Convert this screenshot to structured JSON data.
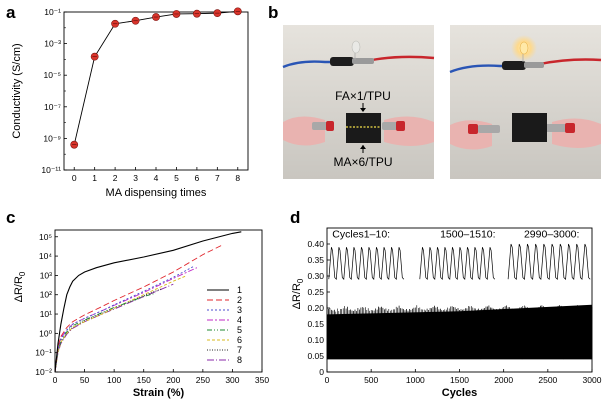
{
  "panels": {
    "a": "a",
    "b": "b",
    "c": "c",
    "d": "d"
  },
  "photo": {
    "label_top": "FA×1/TPU",
    "label_bottom": "MA×6/TPU",
    "colors": {
      "wire_blue": "#2a55b5",
      "wire_red": "#c8262c",
      "tpu": "#1a1a1a",
      "glove": "#e9b3b0",
      "led_on": "#ffe9a8"
    }
  },
  "chart_data": [
    {
      "id": "a",
      "type": "scatter",
      "xlabel": "MA dispensing times",
      "ylabel": "Conductivity (S/cm)",
      "xlim": [
        -0.5,
        8.5
      ],
      "xticks": [
        0,
        1,
        2,
        3,
        4,
        5,
        6,
        7,
        8
      ],
      "ylog": true,
      "ylim_exp": [
        -11,
        -1
      ],
      "yticks": [
        {
          "exp": -11,
          "label": "10⁻¹¹"
        },
        {
          "exp": -9,
          "label": "10⁻⁹"
        },
        {
          "exp": -7,
          "label": "10⁻⁷"
        },
        {
          "exp": -5,
          "label": "10⁻⁵"
        },
        {
          "exp": -3,
          "label": "10⁻³"
        },
        {
          "exp": -1,
          "label": "10⁻¹"
        }
      ],
      "x": [
        0,
        1,
        2,
        3,
        4,
        5,
        6,
        7,
        8
      ],
      "y": [
        4e-10,
        0.00015,
        0.018,
        0.028,
        0.048,
        0.075,
        0.078,
        0.085,
        0.11
      ],
      "marker_color": "#d9342b",
      "line_color": "#000000"
    },
    {
      "id": "c",
      "type": "line",
      "xlabel": "Strain (%)",
      "ylabel_main": "ΔR/R",
      "ylabel_sub": "0",
      "xlim": [
        0,
        350
      ],
      "xticks": [
        0,
        50,
        100,
        150,
        200,
        250,
        300,
        350
      ],
      "ylog": true,
      "ylim_exp": [
        -2,
        5.35
      ],
      "yticks": [
        {
          "exp": -2,
          "label": "10⁻²"
        },
        {
          "exp": -1,
          "label": "10⁻¹"
        },
        {
          "exp": 0,
          "label": "10⁰"
        },
        {
          "exp": 1,
          "label": "10¹"
        },
        {
          "exp": 2,
          "label": "10²"
        },
        {
          "exp": 3,
          "label": "10³"
        },
        {
          "exp": 4,
          "label": "10⁴"
        },
        {
          "exp": 5,
          "label": "10⁵"
        }
      ],
      "legend_position": "right",
      "series": [
        {
          "name": "1",
          "color": "#000000",
          "dash": "",
          "x": [
            0,
            5,
            10,
            15,
            20,
            25,
            30,
            40,
            50,
            70,
            100,
            150,
            200,
            250,
            300,
            315
          ],
          "y": [
            0.01,
            0.3,
            3,
            20,
            100,
            250,
            500,
            1000,
            1500,
            2500,
            4500,
            9000,
            20000,
            60000,
            150000,
            180000
          ]
        },
        {
          "name": "2",
          "color": "#e0242b",
          "dash": "6,3",
          "x": [
            0,
            5,
            10,
            20,
            30,
            50,
            80,
            100,
            150,
            200,
            250,
            285
          ],
          "y": [
            0.01,
            0.2,
            0.7,
            2,
            4,
            9,
            25,
            50,
            250,
            1500,
            12000,
            40000
          ]
        },
        {
          "name": "3",
          "color": "#4c4ccf",
          "dash": "2,2",
          "x": [
            0,
            5,
            10,
            20,
            30,
            50,
            80,
            100,
            150,
            200,
            235
          ],
          "y": [
            0.01,
            0.15,
            0.5,
            1.5,
            3,
            6,
            15,
            30,
            150,
            800,
            3000
          ]
        },
        {
          "name": "4",
          "color": "#c02ac6",
          "dash": "6,2,2,2",
          "x": [
            0,
            5,
            10,
            20,
            30,
            50,
            80,
            100,
            150,
            200,
            240
          ],
          "y": [
            0.01,
            0.2,
            0.6,
            1.5,
            3,
            6,
            15,
            28,
            130,
            700,
            2500
          ]
        },
        {
          "name": "5",
          "color": "#1f8a30",
          "dash": "5,2,1,2,1,2",
          "x": [
            0,
            5,
            10,
            20,
            30,
            50,
            80,
            100,
            150,
            170
          ],
          "y": [
            0.01,
            0.12,
            0.4,
            1.2,
            2.5,
            5,
            12,
            22,
            80,
            120
          ]
        },
        {
          "name": "6",
          "color": "#d9b91c",
          "dash": "3,2",
          "x": [
            0,
            5,
            10,
            20,
            30,
            50,
            80,
            100,
            150,
            200,
            220
          ],
          "y": [
            0.01,
            0.1,
            0.35,
            1,
            2,
            4,
            10,
            20,
            100,
            500,
            900
          ]
        },
        {
          "name": "7",
          "color": "#222222",
          "dash": "1,1.5",
          "x": [
            0,
            5,
            10,
            20,
            30,
            50,
            80,
            100,
            150,
            180
          ],
          "y": [
            0.01,
            0.12,
            0.35,
            1,
            2,
            4.5,
            11,
            20,
            90,
            200
          ]
        },
        {
          "name": "8",
          "color": "#8a2aa8",
          "dash": "7,2,1,2",
          "x": [
            0,
            5,
            10,
            20,
            30,
            50,
            80,
            100,
            150,
            200
          ],
          "y": [
            0.01,
            0.1,
            0.3,
            0.9,
            1.8,
            4,
            10,
            18,
            80,
            350
          ]
        }
      ]
    },
    {
      "id": "d",
      "type": "line",
      "xlabel": "Cycles",
      "ylabel_main": "ΔR/R",
      "ylabel_sub": "0",
      "xlim": [
        0,
        3000
      ],
      "xticks": [
        0,
        500,
        1000,
        1500,
        2000,
        2500,
        3000
      ],
      "ylim": [
        0,
        0.45
      ],
      "yticks": [
        0,
        0.05,
        0.1,
        0.15,
        0.2,
        0.25,
        0.3,
        0.35,
        0.4
      ],
      "ytick_labels": [
        "0",
        "0.05",
        "0.10",
        "0.15",
        "0.20",
        "0.25",
        "0.30",
        "0.35",
        "0.40"
      ],
      "band": {
        "low": 0.04,
        "high": 0.21,
        "color": "#000000"
      },
      "annotations": [
        {
          "text": "Cycles1–10:",
          "cycles": 10,
          "start": 20,
          "end": 870,
          "base": 0.29,
          "peak": 0.39
        },
        {
          "text": "1500–1510:",
          "cycles": 10,
          "start": 1050,
          "end": 1900,
          "base": 0.29,
          "peak": 0.39
        },
        {
          "text": "2990–3000:",
          "cycles": 10,
          "start": 2050,
          "end": 2980,
          "base": 0.29,
          "peak": 0.4
        }
      ]
    }
  ]
}
